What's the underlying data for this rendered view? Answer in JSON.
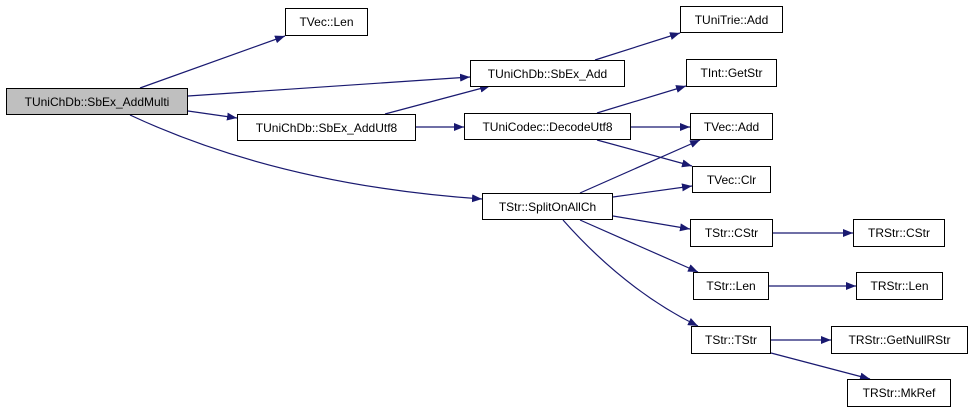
{
  "colors": {
    "edge": "#191970",
    "root_fill": "#bfbfbf",
    "node_fill": "#ffffff",
    "border": "#000000"
  },
  "nodes": [
    {
      "id": "addmulti",
      "label": "TUniChDb::SbEx_AddMulti",
      "root": true
    },
    {
      "id": "tveclen",
      "label": "TVec::Len"
    },
    {
      "id": "sbexadd",
      "label": "TUniChDb::SbEx_Add"
    },
    {
      "id": "addutf8",
      "label": "TUniChDb::SbEx_AddUtf8"
    },
    {
      "id": "decodeutf8",
      "label": "TUniCodec::DecodeUtf8"
    },
    {
      "id": "unitrieadd",
      "label": "TUniTrie::Add"
    },
    {
      "id": "intgetstr",
      "label": "TInt::GetStr"
    },
    {
      "id": "tvecadd",
      "label": "TVec::Add"
    },
    {
      "id": "tvecclr",
      "label": "TVec::Clr"
    },
    {
      "id": "splitonallch",
      "label": "TStr::SplitOnAllCh"
    },
    {
      "id": "tstrcstr",
      "label": "TStr::CStr"
    },
    {
      "id": "trstrcstr",
      "label": "TRStr::CStr"
    },
    {
      "id": "tstrlen",
      "label": "TStr::Len"
    },
    {
      "id": "trstrlen",
      "label": "TRStr::Len"
    },
    {
      "id": "tstrtstr",
      "label": "TStr::TStr"
    },
    {
      "id": "getnullrstr",
      "label": "TRStr::GetNullRStr"
    },
    {
      "id": "mkref",
      "label": "TRStr::MkRef"
    }
  ],
  "edges": [
    [
      "addmulti",
      "tveclen"
    ],
    [
      "addmulti",
      "sbexadd"
    ],
    [
      "addmulti",
      "addutf8"
    ],
    [
      "addmulti",
      "splitonallch"
    ],
    [
      "addutf8",
      "sbexadd"
    ],
    [
      "addutf8",
      "decodeutf8"
    ],
    [
      "sbexadd",
      "unitrieadd"
    ],
    [
      "decodeutf8",
      "intgetstr"
    ],
    [
      "decodeutf8",
      "tvecadd"
    ],
    [
      "decodeutf8",
      "tvecclr"
    ],
    [
      "splitonallch",
      "tvecadd"
    ],
    [
      "splitonallch",
      "tvecclr"
    ],
    [
      "splitonallch",
      "tstrcstr"
    ],
    [
      "splitonallch",
      "tstrlen"
    ],
    [
      "splitonallch",
      "tstrtstr"
    ],
    [
      "tstrcstr",
      "trstrcstr"
    ],
    [
      "tstrlen",
      "trstrlen"
    ],
    [
      "tstrtstr",
      "getnullrstr"
    ],
    [
      "tstrtstr",
      "mkref"
    ]
  ]
}
